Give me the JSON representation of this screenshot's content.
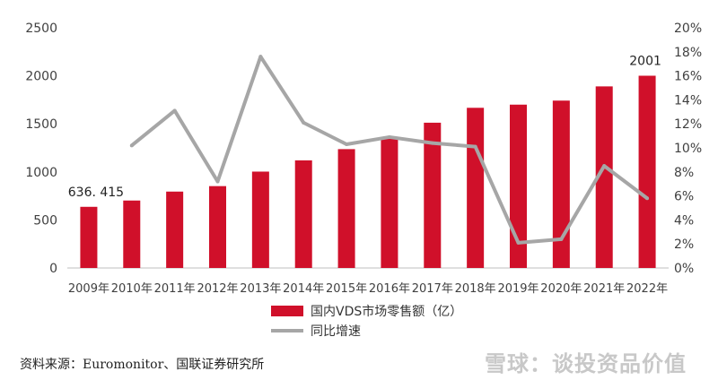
{
  "chart_data": {
    "type": "bar+line",
    "categories": [
      "2009年",
      "2010年",
      "2011年",
      "2012年",
      "2013年",
      "2014年",
      "2015年",
      "2016年",
      "2017年",
      "2018年",
      "2019年",
      "2020年",
      "2021年",
      "2022年"
    ],
    "series": [
      {
        "name": "国内VDS市场零售额（亿）",
        "type": "bar",
        "axis": "left",
        "color": "#d0102a",
        "values": [
          636.415,
          702,
          795,
          852,
          1003,
          1120,
          1237,
          1360,
          1512,
          1667,
          1700,
          1742,
          1890,
          2001
        ]
      },
      {
        "name": "同比增速",
        "type": "line",
        "axis": "right",
        "color": "#a6a6a6",
        "values": [
          null,
          0.102,
          0.131,
          0.072,
          0.176,
          0.121,
          0.103,
          0.109,
          0.104,
          0.101,
          0.021,
          0.024,
          0.085,
          0.058
        ]
      }
    ],
    "data_labels": [
      {
        "index": 0,
        "text": "636. 415"
      },
      {
        "index": 13,
        "text": "2001"
      }
    ],
    "y_left": {
      "ylim": [
        0,
        2500
      ],
      "ticks": [
        "0",
        "500",
        "1000",
        "1500",
        "2000",
        "2500"
      ]
    },
    "y_right": {
      "ylim": [
        0,
        0.2
      ],
      "ticks": [
        "0%",
        "2%",
        "4%",
        "6%",
        "8%",
        "10%",
        "12%",
        "14%",
        "16%",
        "18%",
        "20%"
      ]
    },
    "grid": false,
    "legend_position": "bottom"
  },
  "legend": {
    "bar_label": "国内VDS市场零售额（亿）",
    "line_label": "同比增速"
  },
  "source_text": "资料来源：Euromonitor、国联证券研究所",
  "watermark_text": "雪球：谈投资品价值"
}
